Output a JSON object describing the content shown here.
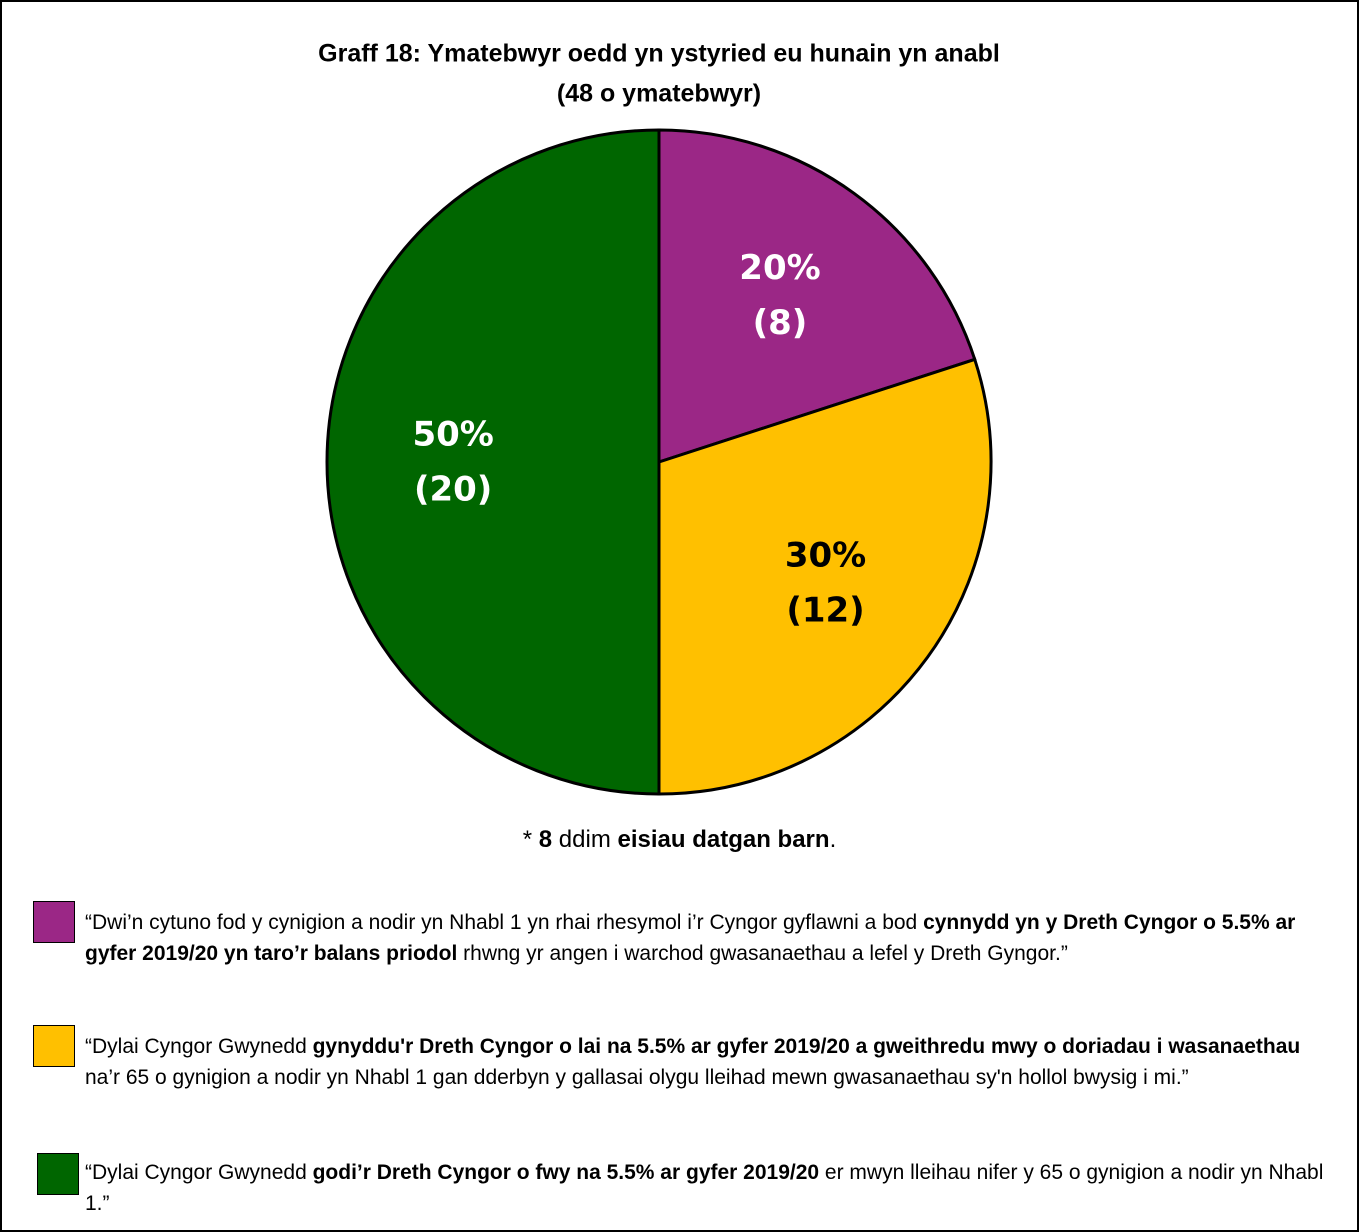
{
  "chart_data": {
    "type": "pie",
    "title": "Graff 18: Ymatebwyr oedd yn ystyried eu hunain yn anabl",
    "subtitle": "(48 o ymatebwyr)",
    "values": [
      20,
      30,
      50
    ],
    "value_labels": [
      "20%",
      "30%",
      "50%"
    ],
    "counts": [
      8,
      12,
      20
    ],
    "count_labels": [
      "(8)",
      "(12)",
      "(20)"
    ],
    "colors": [
      "#9b2786",
      "#ffc000",
      "#006600"
    ],
    "label_colors": [
      "#ffffff",
      "#000000",
      "#ffffff"
    ],
    "note": [
      {
        "text": "* ",
        "bold": false
      },
      {
        "text": "8",
        "bold": true
      },
      {
        "text": " ddim ",
        "bold": false
      },
      {
        "text": "eisiau datgan barn",
        "bold": true
      },
      {
        "text": ".",
        "bold": false
      }
    ],
    "legend": [
      {
        "segments": [
          {
            "text": "“Dwi’n cytuno fod y cynigion a nodir yn Nhabl 1 yn rhai rhesymol i’r Cyngor gyflawni a bod ",
            "bold": false
          },
          {
            "text": "cynnydd yn y Dreth Cyngor o 5.5% ar gyfer 2019/20 yn taro’r balans priodol",
            "bold": true
          },
          {
            "text": " rhwng yr angen i warchod gwasanaethau a lefel y Dreth Gyngor.”",
            "bold": false
          }
        ]
      },
      {
        "segments": [
          {
            "text": "“Dylai Cyngor Gwynedd ",
            "bold": false
          },
          {
            "text": "gynyddu'r Dreth Cyngor o lai na 5.5% ar gyfer 2019/20 a gweithredu mwy o doriadau i wasanaethau",
            "bold": true
          },
          {
            "text": " na’r 65 o gynigion a nodir yn Nhabl 1 gan dderbyn y gallasai olygu lleihad mewn gwasanaethau sy'n hollol bwysig i mi.”",
            "bold": false
          }
        ]
      },
      {
        "segments": [
          {
            "text": "“Dylai Cyngor Gwynedd ",
            "bold": false
          },
          {
            "text": "godi’r Dreth Cyngor o fwy na 5.5% ar gyfer 2019/20",
            "bold": true
          },
          {
            "text": " er mwyn lleihau nifer y 65 o gynigion a nodir yn Nhabl 1.”",
            "bold": false
          }
        ]
      }
    ]
  }
}
